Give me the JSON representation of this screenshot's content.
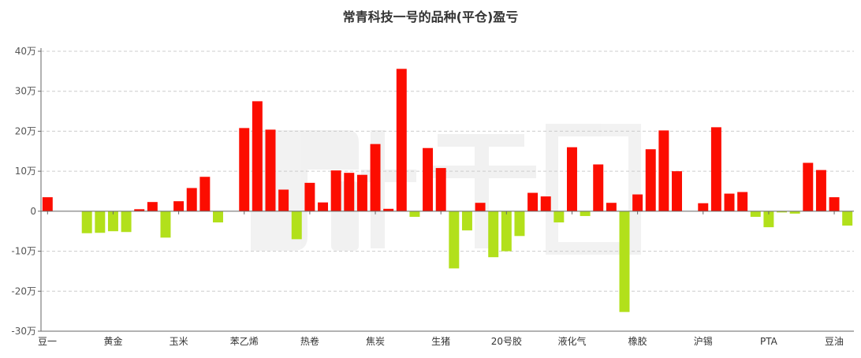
{
  "chart_data": {
    "type": "bar",
    "title": "常青科技一号的品种(平仓)盈亏",
    "xlabel": "",
    "ylabel": "",
    "ylim": [
      -300000,
      400000
    ],
    "grid": true,
    "y_ticks": [
      {
        "value": 400000,
        "label": "40万"
      },
      {
        "value": 300000,
        "label": "30万"
      },
      {
        "value": 200000,
        "label": "20万"
      },
      {
        "value": 100000,
        "label": "10万"
      },
      {
        "value": 0,
        "label": "0"
      },
      {
        "value": -100000,
        "label": "-10万"
      },
      {
        "value": -200000,
        "label": "-20万"
      },
      {
        "value": -300000,
        "label": "-30万"
      }
    ],
    "x_labels": [
      {
        "index": 0,
        "label": "豆一"
      },
      {
        "index": 5,
        "label": "黄金"
      },
      {
        "index": 10,
        "label": "玉米"
      },
      {
        "index": 15,
        "label": "苯乙烯"
      },
      {
        "index": 20,
        "label": "热卷"
      },
      {
        "index": 25,
        "label": "焦炭"
      },
      {
        "index": 30,
        "label": "生猪"
      },
      {
        "index": 35,
        "label": "20号胶"
      },
      {
        "index": 40,
        "label": "液化气"
      },
      {
        "index": 45,
        "label": "橡胶"
      },
      {
        "index": 50,
        "label": "沪锡"
      },
      {
        "index": 55,
        "label": "PTA"
      },
      {
        "index": 60,
        "label": "豆油"
      }
    ],
    "values": [
      35000,
      0,
      0,
      -55000,
      -54000,
      -50000,
      -52000,
      5000,
      23000,
      -66000,
      25000,
      58000,
      86000,
      -28000,
      0,
      208000,
      275000,
      204000,
      54000,
      -70000,
      71000,
      22000,
      102000,
      96000,
      91000,
      168000,
      6000,
      356000,
      -14000,
      158000,
      108000,
      -143000,
      -48000,
      21000,
      -115000,
      -100000,
      -62000,
      46000,
      37000,
      -28000,
      160000,
      -12000,
      117000,
      21000,
      -252000,
      42000,
      155000,
      202000,
      100000,
      0,
      20000,
      210000,
      44000,
      48000,
      -14000,
      -40000,
      -3000,
      -6000,
      121000,
      103000,
      35000,
      -36000
    ],
    "colors": {
      "positive": "#fc0d00",
      "negative": "#b2e01b"
    }
  }
}
